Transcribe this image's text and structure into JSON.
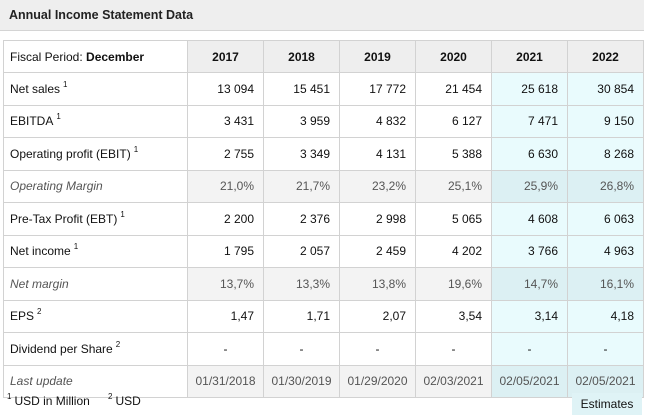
{
  "title": "Annual Income Statement Data",
  "header": {
    "fiscal_label": "Fiscal Period:",
    "fiscal_value": "December",
    "years": [
      "2017",
      "2018",
      "2019",
      "2020",
      "2021",
      "2022"
    ]
  },
  "rows": [
    {
      "label": "Net sales",
      "sup": "1",
      "values": [
        "13 094",
        "15 451",
        "17 772",
        "21 454",
        "25 618",
        "30 854"
      ]
    },
    {
      "label": "EBITDA",
      "sup": "1",
      "values": [
        "3 431",
        "3 959",
        "4 832",
        "6 127",
        "7 471",
        "9 150"
      ]
    },
    {
      "label": "Operating profit (EBIT)",
      "sup": "1",
      "values": [
        "2 755",
        "3 349",
        "4 131",
        "5 388",
        "6 630",
        "8 268"
      ]
    },
    {
      "label": "Operating Margin",
      "sup": "",
      "values": [
        "21,0%",
        "21,7%",
        "23,2%",
        "25,1%",
        "25,9%",
        "26,8%"
      ]
    },
    {
      "label": "Pre-Tax Profit (EBT)",
      "sup": "1",
      "values": [
        "2 200",
        "2 376",
        "2 998",
        "5 065",
        "4 608",
        "6 063"
      ]
    },
    {
      "label": "Net income",
      "sup": "1",
      "values": [
        "1 795",
        "2 057",
        "2 459",
        "4 202",
        "3 766",
        "4 963"
      ]
    },
    {
      "label": "Net margin",
      "sup": "",
      "values": [
        "13,7%",
        "13,3%",
        "13,8%",
        "19,6%",
        "14,7%",
        "16,1%"
      ]
    },
    {
      "label": "EPS",
      "sup": "2",
      "values": [
        "1,47",
        "1,71",
        "2,07",
        "3,54",
        "3,14",
        "4,18"
      ]
    },
    {
      "label": "Dividend per Share",
      "sup": "2",
      "values": [
        "-",
        "-",
        "-",
        "-",
        "-",
        "-"
      ]
    },
    {
      "label": "Last update",
      "sup": "",
      "values": [
        "01/31/2018",
        "01/30/2019",
        "01/29/2020",
        "02/03/2021",
        "02/05/2021",
        "02/05/2021"
      ]
    }
  ],
  "footnotes": {
    "note1_mark": "1",
    "note1_text": "USD in Million",
    "note2_mark": "2",
    "note2_text": "USD"
  },
  "estimates_label": "Estimates",
  "colors": {
    "estimate_bg": "#e9fbfd",
    "header_bg": "#eeeeee"
  }
}
